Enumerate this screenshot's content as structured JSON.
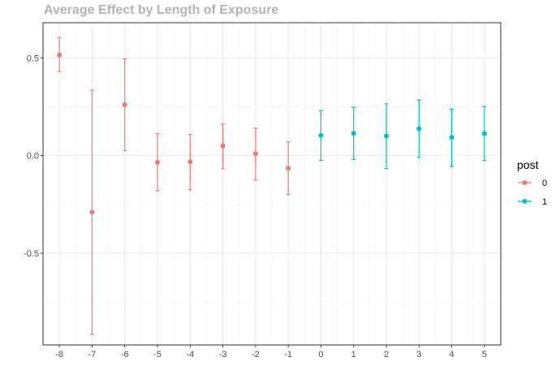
{
  "chart_data": {
    "type": "scatter",
    "title": "Average Effect by Length of Exposure",
    "xlabel": "",
    "ylabel": "",
    "x_ticks": [
      "-8",
      "-7",
      "-6",
      "-5",
      "-4",
      "-3",
      "-2",
      "-1",
      "0",
      "1",
      "2",
      "3",
      "4",
      "5"
    ],
    "y_ticks": [
      "0.5",
      "0.0",
      "-0.5"
    ],
    "y_tick_values": [
      0.5,
      0.0,
      -0.5
    ],
    "xlim": [
      -8.5,
      5.5
    ],
    "ylim": [
      -0.97,
      0.68
    ],
    "grid": true,
    "legend": {
      "title": "post",
      "position": "right",
      "entries": [
        {
          "label": "0",
          "color": "#F8766D"
        },
        {
          "label": "1",
          "color": "#00BFC4"
        }
      ]
    },
    "series": [
      {
        "name": "0",
        "color": "#F8766D",
        "points": [
          {
            "x": -8,
            "y": 0.515,
            "lo": 0.43,
            "hi": 0.605
          },
          {
            "x": -7,
            "y": -0.29,
            "lo": -0.915,
            "hi": 0.335
          },
          {
            "x": -6,
            "y": 0.26,
            "lo": 0.025,
            "hi": 0.495
          },
          {
            "x": -5,
            "y": -0.035,
            "lo": -0.18,
            "hi": 0.112
          },
          {
            "x": -4,
            "y": -0.032,
            "lo": -0.175,
            "hi": 0.108
          },
          {
            "x": -3,
            "y": 0.05,
            "lo": -0.068,
            "hi": 0.162
          },
          {
            "x": -2,
            "y": 0.01,
            "lo": -0.125,
            "hi": 0.14
          },
          {
            "x": -1,
            "y": -0.065,
            "lo": -0.2,
            "hi": 0.07
          }
        ]
      },
      {
        "name": "1",
        "color": "#00BFC4",
        "points": [
          {
            "x": 0,
            "y": 0.103,
            "lo": -0.025,
            "hi": 0.23
          },
          {
            "x": 1,
            "y": 0.113,
            "lo": -0.02,
            "hi": 0.247
          },
          {
            "x": 2,
            "y": 0.1,
            "lo": -0.067,
            "hi": 0.265
          },
          {
            "x": 3,
            "y": 0.137,
            "lo": -0.01,
            "hi": 0.284
          },
          {
            "x": 4,
            "y": 0.093,
            "lo": -0.055,
            "hi": 0.237
          },
          {
            "x": 5,
            "y": 0.112,
            "lo": -0.025,
            "hi": 0.25
          }
        ]
      }
    ]
  }
}
